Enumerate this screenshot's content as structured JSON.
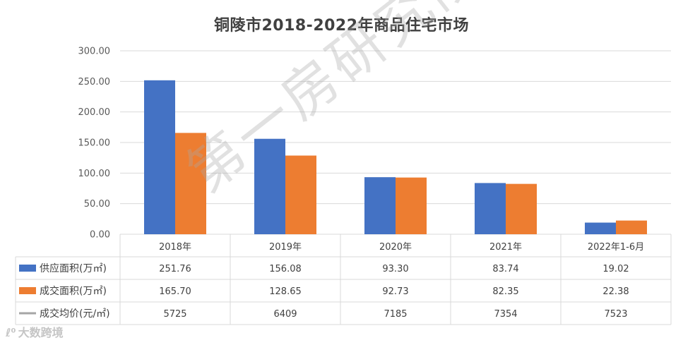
{
  "chart_data": {
    "type": "bar",
    "title": "铜陵市2018-2022年商品住宅市场",
    "categories": [
      "2018年",
      "2019年",
      "2020年",
      "2021年",
      "2022年1-6月"
    ],
    "series": [
      {
        "name": "供应面积(万㎡)",
        "values": [
          251.76,
          156.08,
          93.3,
          83.74,
          19.02
        ],
        "color": "#4472C4",
        "labels": [
          "251.76",
          "156.08",
          "93.30",
          "83.74",
          "19.02"
        ]
      },
      {
        "name": "成交面积(万㎡)",
        "values": [
          165.7,
          128.65,
          92.73,
          82.35,
          22.38
        ],
        "color": "#ED7D31",
        "labels": [
          "165.70",
          "128.65",
          "92.73",
          "82.35",
          "22.38"
        ]
      },
      {
        "name": "成交均价(元/㎡)",
        "values": [
          5725,
          6409,
          7185,
          7354,
          7523
        ],
        "color": "#A5A5A5",
        "type": "line",
        "labels": [
          "5725",
          "6409",
          "7185",
          "7354",
          "7523"
        ]
      }
    ],
    "ylim": [
      0,
      300
    ],
    "yticks": [
      "0.00",
      "50.00",
      "100.00",
      "150.00",
      "200.00",
      "250.00",
      "300.00"
    ],
    "grid": true,
    "legend": "data-table"
  },
  "watermark": "第一房研究院",
  "brand": {
    "icon": "weibo-icon",
    "label": "大数跨境"
  }
}
